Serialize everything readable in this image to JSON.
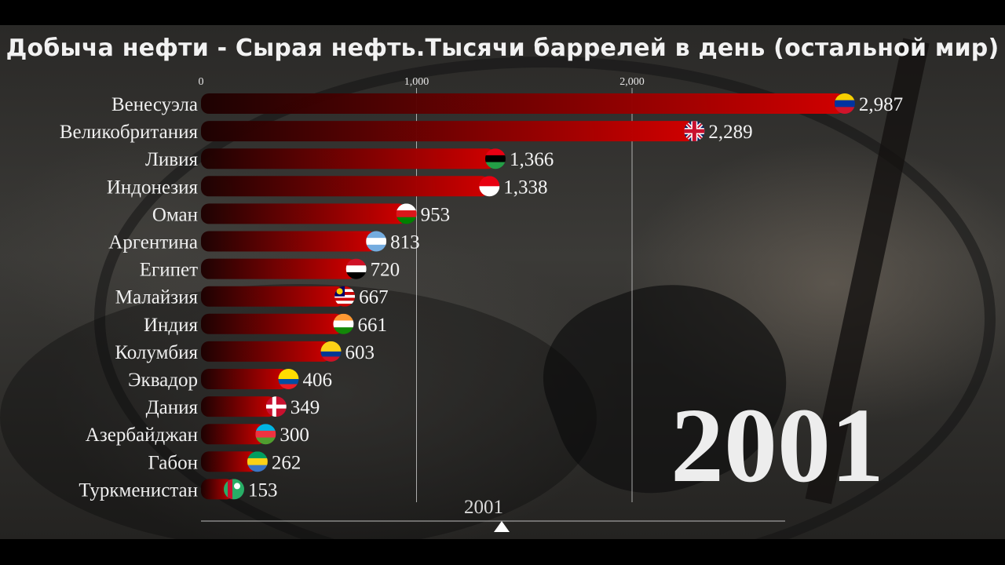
{
  "title": "Добыча нефти - Сырая нефть.Тысячи баррелей в день (остальной мир)",
  "year": "2001",
  "timeline": {
    "label": "2001"
  },
  "colors": {
    "bar_dark": "#2a0000",
    "bar_bright": "#cc0000",
    "text": "#f2f2f2",
    "axis": "#cfcfcf"
  },
  "chart_data": {
    "type": "bar",
    "orientation": "horizontal",
    "title": "Добыча нефти - Сырая нефть.Тысячи баррелей в день (остальной мир)",
    "xlim": [
      0,
      3000
    ],
    "x_ticks": [
      0,
      1000,
      2000
    ],
    "x_tick_labels": [
      "0",
      "1,000",
      "2,000"
    ],
    "grid": true,
    "categories": [
      "Венесуэла",
      "Великобритания",
      "Ливия",
      "Индонезия",
      "Оман",
      "Аргентина",
      "Египет",
      "Малайзия",
      "Индия",
      "Колумбия",
      "Эквадор",
      "Дания",
      "Азербайджан",
      "Габон",
      "Туркменистан"
    ],
    "values": [
      2987,
      2289,
      1366,
      1338,
      953,
      813,
      720,
      667,
      661,
      603,
      406,
      349,
      300,
      262,
      153
    ],
    "value_labels": [
      "2,987",
      "2,289",
      "1,366",
      "1,338",
      "953",
      "813",
      "720",
      "667",
      "661",
      "603",
      "406",
      "349",
      "300",
      "262",
      "153"
    ],
    "flags": [
      "venezuela-flag-icon",
      "uk-flag-icon",
      "libya-flag-icon",
      "indonesia-flag-icon",
      "oman-flag-icon",
      "argentina-flag-icon",
      "egypt-flag-icon",
      "malaysia-flag-icon",
      "india-flag-icon",
      "colombia-flag-icon",
      "ecuador-flag-icon",
      "denmark-flag-icon",
      "azerbaijan-flag-icon",
      "gabon-flag-icon",
      "turkmenistan-flag-icon"
    ]
  }
}
